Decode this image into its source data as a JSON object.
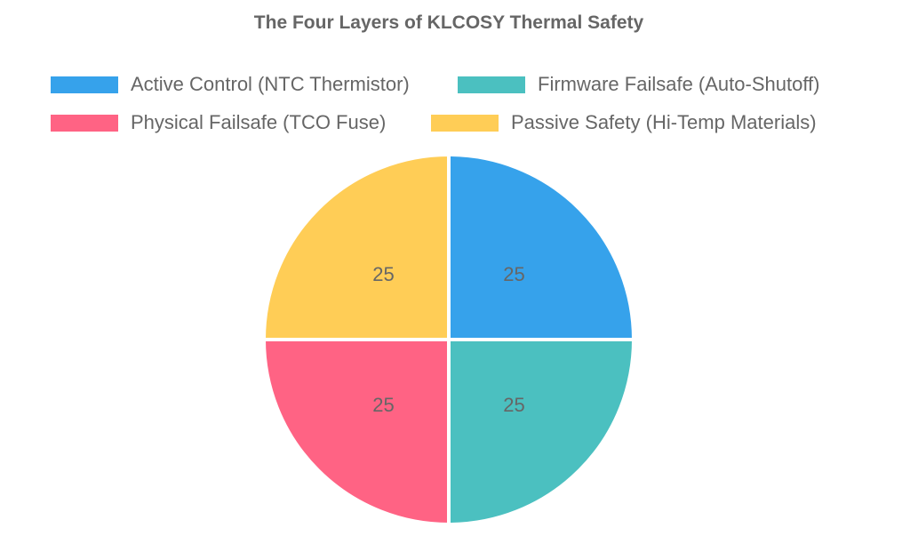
{
  "chart_data": {
    "type": "pie",
    "title": "The Four Layers of KLCOSY Thermal Safety",
    "categories": [
      "Active Control (NTC Thermistor)",
      "Firmware Failsafe (Auto-Shutoff)",
      "Physical Failsafe (TCO Fuse)",
      "Passive Safety (Hi-Temp Materials)"
    ],
    "values": [
      25,
      25,
      25,
      25
    ],
    "colors": [
      "#36a2eb",
      "#4bc0c0",
      "#ff6384",
      "#ffcd56"
    ],
    "legend_position": "top"
  }
}
